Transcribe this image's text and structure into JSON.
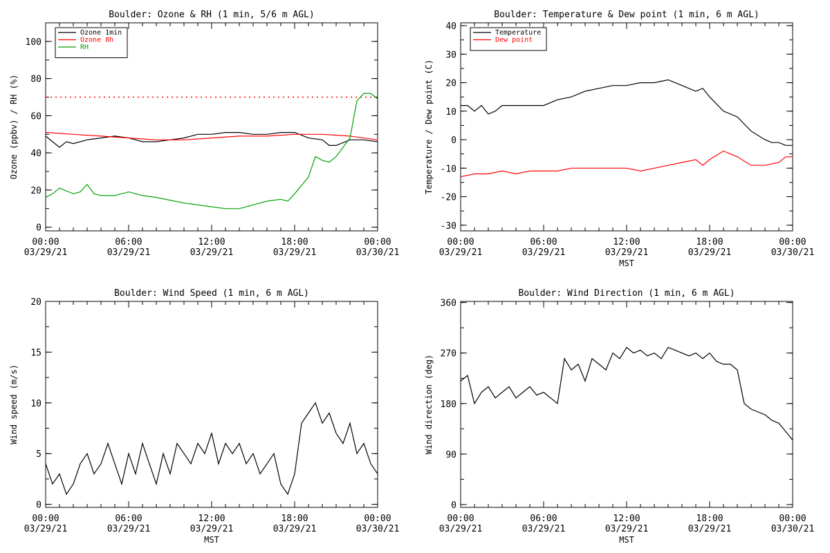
{
  "colors": {
    "black": "#000000",
    "red": "#ff0000",
    "green": "#00a000"
  },
  "chart_data": [
    {
      "id": "ozone_rh",
      "type": "line",
      "title": "Boulder: Ozone & RH (1 min, 5/6 m AGL)",
      "xlabel": "",
      "ylabel": "Ozone (ppbv) / RH (%)",
      "xlim": [
        0,
        24
      ],
      "ylim": [
        -2,
        110
      ],
      "y_ticks": [
        0,
        20,
        40,
        60,
        80,
        100
      ],
      "x_ticks": [
        "00:00\n03/29/21",
        "06:00\n03/29/21",
        "12:00\n03/29/21",
        "18:00\n03/29/21",
        "00:00\n03/30/21"
      ],
      "grid": false,
      "legend": "top-left",
      "reference_lines": [
        {
          "y": 70,
          "color": "#ff0000",
          "style": "dotted"
        }
      ],
      "series": [
        {
          "name": "Ozone 1min",
          "color": "#000000",
          "x": [
            0,
            0.5,
            1,
            1.5,
            2,
            3,
            4,
            5,
            6,
            7,
            8,
            9,
            10,
            11,
            12,
            13,
            14,
            15,
            16,
            17,
            18,
            19,
            20,
            20.5,
            21,
            22,
            23,
            24
          ],
          "y": [
            49,
            46,
            43,
            46,
            45,
            47,
            48,
            49,
            48,
            46,
            46,
            47,
            48,
            50,
            50,
            51,
            51,
            50,
            50,
            51,
            51,
            48,
            47,
            44,
            44,
            47,
            47,
            46
          ]
        },
        {
          "name": "Ozone 8h",
          "color": "#ff0000",
          "x": [
            0,
            2,
            4,
            6,
            8,
            10,
            12,
            14,
            16,
            18,
            20,
            22,
            24
          ],
          "y": [
            51,
            50,
            49,
            48,
            47,
            47,
            48,
            49,
            49,
            50,
            50,
            49,
            47
          ]
        },
        {
          "name": "RH",
          "color": "#00a000",
          "x": [
            0,
            0.5,
            1,
            2,
            2.5,
            3,
            3.5,
            4,
            5,
            6,
            7,
            8,
            10,
            12,
            13,
            14,
            15,
            16,
            17,
            17.5,
            18,
            19,
            19.5,
            20,
            20.5,
            21,
            22,
            22.5,
            23,
            23.5,
            24
          ],
          "y": [
            16,
            18,
            21,
            18,
            19,
            23,
            18,
            17,
            17,
            19,
            17,
            16,
            13,
            11,
            10,
            10,
            12,
            14,
            15,
            14,
            18,
            27,
            38,
            36,
            35,
            38,
            48,
            68,
            72,
            72,
            69
          ]
        }
      ]
    },
    {
      "id": "temp_dew",
      "type": "line",
      "title": "Boulder: Temperature & Dew point (1 min, 6 m AGL)",
      "xlabel": "MST",
      "ylabel": "Temperature / Dew point (C)",
      "xlim": [
        0,
        24
      ],
      "ylim": [
        -32,
        41
      ],
      "y_ticks": [
        -30,
        -20,
        -10,
        0,
        10,
        20,
        30,
        40
      ],
      "x_ticks": [
        "00:00\n03/29/21",
        "06:00\n03/29/21",
        "12:00\n03/29/21",
        "18:00\n03/29/21",
        "00:00\n03/30/21"
      ],
      "grid": false,
      "legend": "top-left",
      "series": [
        {
          "name": "Temperature",
          "color": "#000000",
          "x": [
            0,
            0.5,
            1,
            1.5,
            2,
            2.5,
            3,
            4,
            5,
            6,
            7,
            8,
            9,
            10,
            11,
            12,
            13,
            14,
            15,
            16,
            17,
            17.5,
            18,
            19,
            20,
            21,
            22,
            22.5,
            23,
            23.5,
            24
          ],
          "y": [
            12,
            12,
            10,
            12,
            9,
            10,
            12,
            12,
            12,
            12,
            14,
            15,
            17,
            18,
            19,
            19,
            20,
            20,
            21,
            19,
            17,
            18,
            15,
            10,
            8,
            3,
            0,
            -1,
            -1,
            -2,
            -2
          ]
        },
        {
          "name": "Dew point",
          "color": "#ff0000",
          "x": [
            0,
            1,
            2,
            3,
            4,
            5,
            6,
            7,
            8,
            9,
            10,
            11,
            12,
            13,
            14,
            15,
            16,
            17,
            17.5,
            18,
            19,
            20,
            21,
            22,
            23,
            23.5,
            24
          ],
          "y": [
            -13,
            -12,
            -12,
            -11,
            -12,
            -11,
            -11,
            -11,
            -10,
            -10,
            -10,
            -10,
            -10,
            -11,
            -10,
            -9,
            -8,
            -7,
            -9,
            -7,
            -4,
            -6,
            -9,
            -9,
            -8,
            -6,
            -6
          ]
        }
      ]
    },
    {
      "id": "wind_speed",
      "type": "line",
      "title": "Boulder: Wind Speed (1 min, 6 m AGL)",
      "xlabel": "MST",
      "ylabel": "Wind speed (m/s)",
      "xlim": [
        0,
        24
      ],
      "ylim": [
        -0.3,
        20
      ],
      "y_ticks": [
        0,
        5,
        10,
        15,
        20
      ],
      "x_ticks": [
        "00:00\n03/29/21",
        "06:00\n03/29/21",
        "12:00\n03/29/21",
        "18:00\n03/29/21",
        "00:00\n03/30/21"
      ],
      "grid": false,
      "series": [
        {
          "name": "",
          "color": "#000000",
          "x": [
            0,
            0.5,
            1,
            1.5,
            2,
            2.5,
            3,
            3.5,
            4,
            4.5,
            5,
            5.5,
            6,
            6.5,
            7,
            7.5,
            8,
            8.5,
            9,
            9.5,
            10,
            10.5,
            11,
            11.5,
            12,
            12.5,
            13,
            13.5,
            14,
            14.5,
            15,
            15.5,
            16,
            16.5,
            17,
            17.5,
            18,
            18.5,
            19,
            19.5,
            20,
            20.5,
            21,
            21.5,
            22,
            22.5,
            23,
            23.5,
            24
          ],
          "y": [
            4,
            2,
            3,
            1,
            2,
            4,
            5,
            3,
            4,
            6,
            4,
            2,
            5,
            3,
            6,
            4,
            2,
            5,
            3,
            6,
            5,
            4,
            6,
            5,
            7,
            4,
            6,
            5,
            6,
            4,
            5,
            3,
            4,
            5,
            2,
            1,
            3,
            8,
            9,
            10,
            8,
            9,
            7,
            6,
            8,
            5,
            6,
            4,
            3
          ]
        }
      ]
    },
    {
      "id": "wind_dir",
      "type": "line",
      "title": "Boulder: Wind Direction (1 min, 6 m AGL)",
      "xlabel": "MST",
      "ylabel": "Wind direction (deg)",
      "xlim": [
        0,
        24
      ],
      "ylim": [
        -5,
        362
      ],
      "y_ticks": [
        0,
        90,
        180,
        270,
        360
      ],
      "x_ticks": [
        "00:00\n03/29/21",
        "06:00\n03/29/21",
        "12:00\n03/29/21",
        "18:00\n03/29/21",
        "00:00\n03/30/21"
      ],
      "grid": false,
      "series": [
        {
          "name": "",
          "color": "#000000",
          "x": [
            0,
            0.5,
            1,
            1.5,
            2,
            2.5,
            3,
            3.5,
            4,
            4.5,
            5,
            5.5,
            6,
            6.5,
            7,
            7.5,
            8,
            8.5,
            9,
            9.5,
            10,
            10.5,
            11,
            11.5,
            12,
            12.5,
            13,
            13.5,
            14,
            14.5,
            15,
            15.5,
            16,
            16.5,
            17,
            17.5,
            18,
            18.5,
            19,
            19.5,
            20,
            20.5,
            21,
            21.5,
            22,
            22.5,
            23,
            23.5,
            24
          ],
          "y": [
            220,
            230,
            180,
            200,
            210,
            190,
            200,
            210,
            190,
            200,
            210,
            195,
            200,
            190,
            180,
            260,
            240,
            250,
            220,
            260,
            250,
            240,
            270,
            260,
            280,
            270,
            275,
            265,
            270,
            260,
            280,
            275,
            270,
            265,
            270,
            260,
            270,
            255,
            250,
            250,
            240,
            180,
            170,
            165,
            160,
            150,
            145,
            130,
            115
          ]
        }
      ]
    }
  ]
}
